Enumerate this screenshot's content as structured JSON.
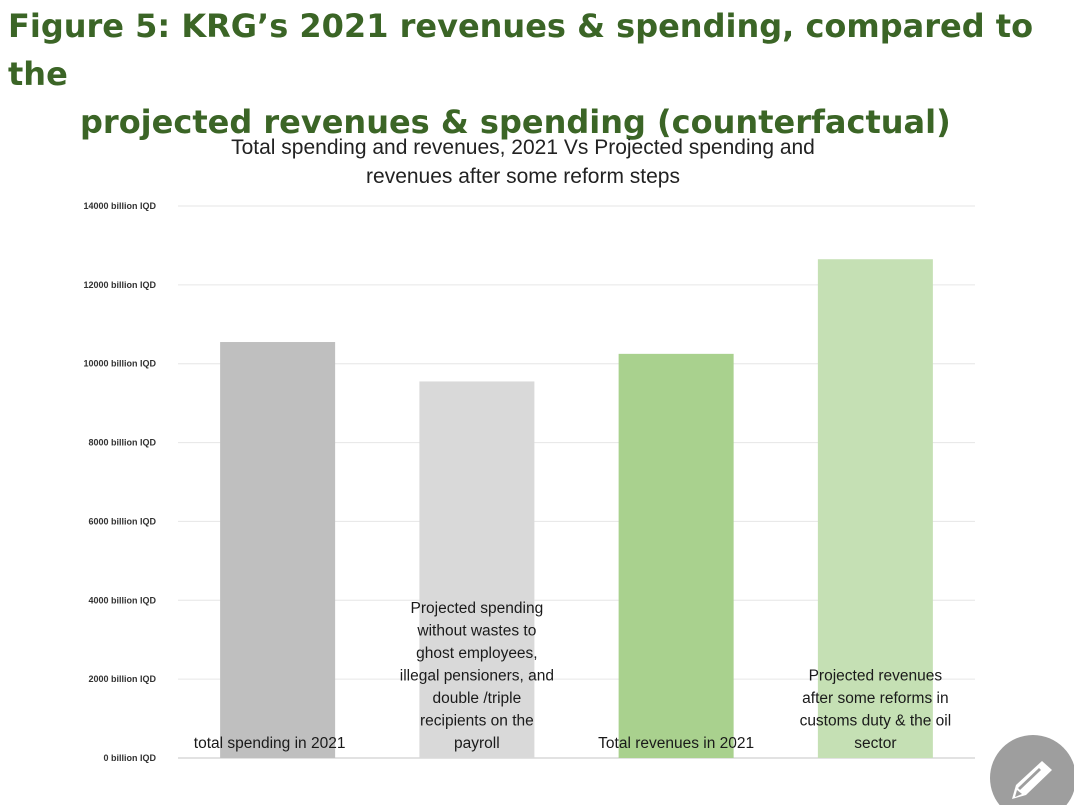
{
  "figure": {
    "title_line1": "Figure 5: KRG’s 2021 revenues & spending, compared to the",
    "title_line2": "projected revenues & spending (counterfactual)"
  },
  "chart_data": {
    "type": "bar",
    "title": [
      "Total spending and revenues, 2021 Vs Projected spending and",
      "revenues after some reform steps"
    ],
    "categories": [
      "total spending in 2021",
      "Projected spending without wastes to ghost employees, illegal pensioners, and double /triple recipients on the payroll",
      "Total revenues in 2021",
      "Projected revenues after some reforms in customs duty & the oil sector"
    ],
    "category_label_lines": [
      [
        "total spending in 2021"
      ],
      [
        "Projected spending",
        "without wastes to",
        "ghost employees,",
        "illegal pensioners, and",
        "double /triple",
        "recipients on the",
        "payroll"
      ],
      [
        "Total revenues in 2021"
      ],
      [
        "Projected revenues",
        "after some reforms in",
        "customs duty & the oil",
        "sector"
      ]
    ],
    "values": [
      10550,
      9550,
      10250,
      12650
    ],
    "colors": [
      "#bfbfbf",
      "#d9d9d9",
      "#a9d18e",
      "#c5e0b4"
    ],
    "ylim": [
      0,
      14000
    ],
    "yticks": [
      0,
      2000,
      4000,
      6000,
      8000,
      10000,
      12000,
      14000
    ],
    "ytick_labels": [
      "0 billion IQD",
      "2000 billion IQD",
      "4000 billion IQD",
      "6000 billion IQD",
      "8000 billion IQD",
      "10000 billion IQD",
      "12000 billion IQD",
      "14000 billion IQD"
    ],
    "grid": true,
    "legend": "none"
  },
  "ui": {
    "edit_icon": "pencil-icon"
  }
}
